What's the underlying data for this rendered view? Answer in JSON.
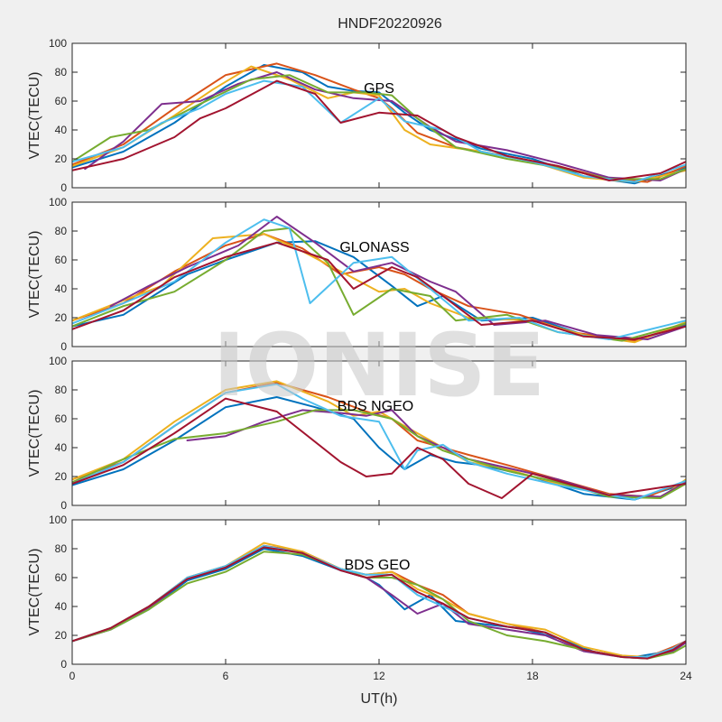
{
  "watermark": "IONISE",
  "figure": {
    "title": "HNDF20220926",
    "xlabel": "UT(h)"
  },
  "colors": [
    "#0072BD",
    "#D95319",
    "#EDB120",
    "#7E2F8E",
    "#77AC30",
    "#4DBEEE",
    "#A2142F"
  ],
  "chart_data": [
    {
      "type": "line",
      "label": "GPS",
      "ylabel": "VTEC(TECU)",
      "xlim": [
        0,
        24
      ],
      "ylim": [
        0,
        100
      ],
      "xticks": [
        0,
        6,
        12,
        18,
        24
      ],
      "yticks": [
        0,
        20,
        40,
        60,
        80,
        100
      ],
      "series": [
        {
          "x": [
            0,
            2,
            4,
            6,
            7.5,
            9,
            10,
            11,
            12,
            13,
            14,
            16,
            18,
            20,
            22,
            24
          ],
          "y": [
            14,
            25,
            45,
            70,
            85,
            80,
            70,
            67,
            66,
            52,
            40,
            27,
            20,
            8,
            3,
            14
          ]
        },
        {
          "x": [
            0,
            2,
            4,
            6,
            8,
            9.5,
            11,
            12,
            12.5,
            13.5,
            15,
            17,
            19,
            21,
            22.5,
            24
          ],
          "y": [
            16,
            30,
            55,
            78,
            86,
            78,
            68,
            62,
            55,
            38,
            28,
            22,
            15,
            6,
            4,
            15
          ]
        },
        {
          "x": [
            0,
            2,
            4,
            5.5,
            7,
            8.5,
            10,
            11,
            12,
            13,
            14,
            16,
            18,
            20,
            22,
            24
          ],
          "y": [
            15,
            28,
            50,
            68,
            84,
            75,
            62,
            66,
            64,
            40,
            30,
            25,
            18,
            7,
            4,
            12
          ]
        },
        {
          "x": [
            0.5,
            2,
            3.5,
            5,
            6.5,
            8,
            9.5,
            11,
            12.5,
            14,
            15,
            17,
            19,
            21,
            23,
            24
          ],
          "y": [
            13,
            32,
            58,
            60,
            72,
            80,
            68,
            62,
            60,
            42,
            32,
            26,
            17,
            7,
            5,
            13
          ]
        },
        {
          "x": [
            0,
            1.5,
            3,
            5,
            7,
            8.5,
            10,
            11.5,
            12.5,
            13.5,
            15,
            17,
            19,
            21,
            23,
            24
          ],
          "y": [
            18,
            35,
            40,
            58,
            75,
            78,
            66,
            66,
            64,
            48,
            28,
            20,
            14,
            6,
            6,
            13
          ]
        },
        {
          "x": [
            0,
            2,
            3.5,
            5,
            6,
            7.5,
            9,
            10.5,
            12,
            13,
            14.5,
            16,
            18,
            20,
            22,
            24
          ],
          "y": [
            18,
            28,
            45,
            55,
            65,
            74,
            70,
            45,
            62,
            46,
            40,
            25,
            18,
            8,
            4,
            16
          ]
        },
        {
          "x": [
            0,
            2,
            4,
            5,
            6,
            8,
            9.5,
            10.5,
            12,
            13.5,
            15,
            17,
            19,
            21,
            23,
            24
          ],
          "y": [
            12,
            20,
            35,
            48,
            55,
            74,
            65,
            45,
            52,
            50,
            35,
            22,
            15,
            5,
            10,
            18
          ]
        }
      ]
    },
    {
      "type": "line",
      "label": "GLONASS",
      "ylabel": "VTEC(TECU)",
      "xlim": [
        0,
        24
      ],
      "ylim": [
        0,
        100
      ],
      "xticks": [
        0,
        6,
        12,
        18,
        24
      ],
      "yticks": [
        0,
        20,
        40,
        60,
        80,
        100
      ],
      "series": [
        {
          "x": [
            0,
            2,
            4.5,
            6,
            8,
            9.5,
            11,
            12.5,
            13.5,
            14.5,
            16,
            18,
            20,
            22,
            24
          ],
          "y": [
            14,
            22,
            50,
            60,
            72,
            73,
            62,
            42,
            28,
            35,
            18,
            20,
            8,
            4,
            15
          ]
        },
        {
          "x": [
            0,
            2,
            4,
            6,
            7.5,
            9,
            10.5,
            12,
            13,
            14,
            15.5,
            17.5,
            19.5,
            22,
            24
          ],
          "y": [
            18,
            30,
            52,
            70,
            78,
            68,
            50,
            55,
            50,
            40,
            28,
            22,
            10,
            4,
            16
          ]
        },
        {
          "x": [
            0,
            2,
            3.5,
            5.5,
            7.5,
            9,
            10.5,
            12,
            13,
            14,
            15.5,
            18,
            20,
            22,
            24
          ],
          "y": [
            18,
            32,
            42,
            75,
            78,
            66,
            52,
            38,
            40,
            30,
            20,
            18,
            8,
            3,
            17
          ]
        },
        {
          "x": [
            1.5,
            3,
            4.5,
            6.5,
            8,
            9.5,
            11,
            12.5,
            14,
            15,
            16.5,
            18.5,
            20.5,
            22.5,
            24
          ],
          "y": [
            28,
            42,
            55,
            70,
            90,
            72,
            52,
            58,
            45,
            38,
            15,
            18,
            8,
            5,
            14
          ]
        },
        {
          "x": [
            0,
            2,
            4,
            6,
            7.5,
            8.5,
            10,
            11,
            12.5,
            14,
            15,
            17,
            19,
            21.5,
            24
          ],
          "y": [
            14,
            28,
            38,
            60,
            80,
            82,
            58,
            22,
            40,
            35,
            18,
            22,
            10,
            4,
            16
          ]
        },
        {
          "x": [
            0,
            2,
            4,
            6,
            7.5,
            8.5,
            9.3,
            11,
            12.5,
            14,
            15.5,
            17.5,
            19,
            21,
            24
          ],
          "y": [
            16,
            30,
            45,
            72,
            88,
            82,
            30,
            58,
            62,
            40,
            18,
            20,
            10,
            5,
            18
          ]
        },
        {
          "x": [
            0,
            2,
            4,
            6,
            8,
            10,
            11,
            12.5,
            13.5,
            14.5,
            16,
            18,
            20,
            22,
            24
          ],
          "y": [
            12,
            25,
            48,
            62,
            72,
            60,
            40,
            55,
            48,
            35,
            15,
            18,
            7,
            5,
            14
          ]
        }
      ]
    },
    {
      "type": "line",
      "label": "BDS NGEO",
      "ylabel": "VTEC(TECU)",
      "xlim": [
        0,
        24
      ],
      "ylim": [
        0,
        100
      ],
      "xticks": [
        0,
        6,
        12,
        18,
        24
      ],
      "yticks": [
        0,
        20,
        40,
        60,
        80,
        100
      ],
      "series": [
        {
          "x": [
            0,
            2,
            4,
            6,
            8,
            9.5,
            11,
            12,
            13,
            14,
            15,
            16,
            18,
            20,
            22,
            24
          ],
          "y": [
            14,
            25,
            45,
            68,
            75,
            68,
            60,
            40,
            25,
            35,
            30,
            28,
            20,
            8,
            4,
            15
          ]
        },
        {
          "x": [
            0,
            2,
            4,
            6,
            8,
            10,
            11.5,
            12.5,
            13.5,
            14.5,
            15.5,
            17,
            19,
            21,
            22.5,
            24
          ],
          "y": [
            18,
            30,
            55,
            78,
            85,
            75,
            65,
            60,
            45,
            40,
            35,
            28,
            18,
            8,
            6,
            17
          ]
        },
        {
          "x": [
            0,
            2,
            4,
            6,
            8,
            10,
            11,
            12,
            13.5,
            14.5,
            15.5,
            17,
            19,
            21,
            23,
            24
          ],
          "y": [
            18,
            32,
            58,
            80,
            86,
            72,
            62,
            65,
            50,
            40,
            30,
            25,
            15,
            7,
            5,
            18
          ]
        },
        {
          "x": [
            4.5,
            6,
            7.5,
            9,
            10.5,
            11.5,
            12.5,
            13.5,
            14.5,
            15.5,
            17,
            19,
            21,
            23,
            24
          ],
          "y": [
            45,
            48,
            58,
            66,
            64,
            62,
            66,
            48,
            40,
            32,
            26,
            18,
            7,
            6,
            16
          ]
        },
        {
          "x": [
            0,
            2,
            4,
            6,
            8,
            9.5,
            11,
            12.5,
            13.5,
            14.5,
            15.5,
            17,
            19,
            21,
            23,
            24
          ],
          "y": [
            16,
            32,
            46,
            50,
            58,
            66,
            66,
            60,
            48,
            38,
            32,
            24,
            16,
            6,
            5,
            15
          ]
        },
        {
          "x": [
            0,
            2,
            4,
            6,
            8,
            9,
            10.5,
            12,
            13,
            13.5,
            14.5,
            15.5,
            17,
            19,
            22,
            24
          ],
          "y": [
            15,
            30,
            55,
            78,
            84,
            74,
            62,
            58,
            25,
            38,
            42,
            30,
            22,
            14,
            4,
            17
          ]
        },
        {
          "x": [
            0,
            2,
            4,
            5,
            6,
            8,
            10.5,
            11.5,
            12.5,
            13.5,
            14.5,
            15.5,
            16.8,
            18,
            21,
            24
          ],
          "y": [
            15,
            28,
            50,
            62,
            74,
            65,
            30,
            20,
            22,
            40,
            32,
            15,
            5,
            22,
            7,
            15
          ]
        }
      ]
    },
    {
      "type": "line",
      "label": "BDS GEO",
      "ylabel": "VTEC(TECU)",
      "xlim": [
        0,
        24
      ],
      "ylim": [
        0,
        100
      ],
      "xticks": [
        0,
        6,
        12,
        18,
        24
      ],
      "yticks": [
        0,
        20,
        40,
        60,
        80,
        100
      ],
      "series": [
        {
          "x": [
            0,
            1.5,
            3,
            4.5,
            6,
            7.5,
            9,
            10.5,
            11.5,
            12,
            13,
            14,
            15,
            16,
            17.5,
            19,
            20.5,
            22,
            23,
            24
          ],
          "y": [
            16,
            24,
            38,
            58,
            66,
            80,
            75,
            65,
            60,
            55,
            38,
            48,
            30,
            28,
            25,
            18,
            8,
            5,
            8,
            15
          ]
        },
        {
          "x": [
            0,
            1.5,
            3,
            4.5,
            6,
            7.5,
            9,
            10.5,
            11.5,
            12.5,
            13.5,
            14.5,
            15.5,
            17,
            18.5,
            20,
            21.5,
            22.5,
            23.5,
            24
          ],
          "y": [
            16,
            25,
            40,
            60,
            68,
            82,
            78,
            66,
            62,
            64,
            55,
            48,
            35,
            28,
            22,
            10,
            5,
            5,
            12,
            16
          ]
        },
        {
          "x": [
            0,
            1.5,
            3,
            4.5,
            6,
            7.5,
            9,
            10.5,
            11.5,
            12.5,
            13.5,
            14.5,
            15.5,
            17,
            18.5,
            20,
            21.5,
            22.5,
            23.5,
            24
          ],
          "y": [
            16,
            25,
            40,
            60,
            68,
            84,
            78,
            66,
            62,
            64,
            52,
            45,
            35,
            28,
            24,
            12,
            6,
            5,
            10,
            16
          ]
        },
        {
          "x": [
            0,
            1.5,
            3,
            4.5,
            6,
            7.5,
            9,
            10.5,
            11.5,
            12.5,
            13.5,
            14.5,
            15.5,
            17,
            18.5,
            20,
            21.5,
            22.5,
            23.5,
            24
          ],
          "y": [
            16,
            24,
            39,
            59,
            67,
            82,
            77,
            65,
            60,
            48,
            35,
            42,
            28,
            24,
            20,
            9,
            5,
            4,
            9,
            15
          ]
        },
        {
          "x": [
            0,
            1.5,
            3,
            4.5,
            6,
            7.5,
            9,
            10.5,
            11.5,
            12.5,
            13.5,
            14.5,
            15.5,
            17,
            18.5,
            20,
            21.5,
            22.5,
            23.5,
            24
          ],
          "y": [
            16,
            24,
            38,
            56,
            64,
            78,
            76,
            66,
            60,
            60,
            55,
            45,
            30,
            20,
            16,
            10,
            5,
            4,
            8,
            13
          ]
        },
        {
          "x": [
            0,
            1.5,
            3,
            4.5,
            6,
            7.5,
            9,
            10.5,
            11.5,
            12.5,
            13.5,
            14.5,
            15.5,
            17,
            18.5,
            20,
            21.5,
            22.5,
            23.5,
            24
          ],
          "y": [
            16,
            25,
            40,
            60,
            68,
            82,
            77,
            66,
            62,
            62,
            48,
            40,
            32,
            26,
            22,
            10,
            5,
            5,
            11,
            16
          ]
        },
        {
          "x": [
            0,
            1.5,
            3,
            4.5,
            6,
            7.5,
            9,
            10.5,
            11.5,
            12.5,
            13.5,
            14.5,
            15.5,
            17,
            18.5,
            20,
            21.5,
            22.5,
            23.5,
            24
          ],
          "y": [
            16,
            25,
            40,
            59,
            67,
            81,
            77,
            65,
            60,
            62,
            50,
            42,
            32,
            26,
            22,
            10,
            5,
            4,
            10,
            16
          ]
        }
      ]
    }
  ]
}
